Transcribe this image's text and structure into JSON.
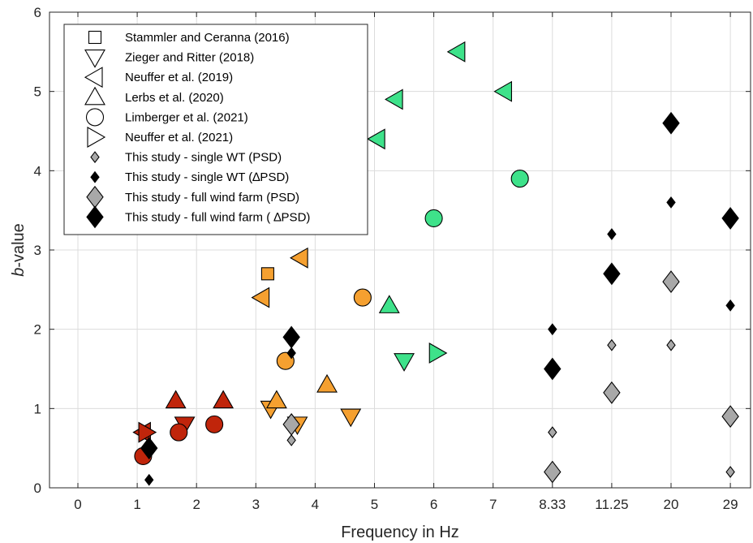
{
  "chart_data": {
    "type": "scatter",
    "xlabel": "Frequency in Hz",
    "ylabel_italic": "b",
    "ylabel_rest": "-value",
    "x_tick_labels": [
      "0",
      "1",
      "2",
      "3",
      "4",
      "5",
      "6",
      "7",
      "8.33",
      "11.25",
      "20",
      "29"
    ],
    "y_tick_labels": [
      "0",
      "1",
      "2",
      "3",
      "4",
      "5",
      "6"
    ],
    "ylim": [
      0,
      6
    ],
    "grid": true,
    "legend_position": "top-left",
    "colors": {
      "red": "#c0250b",
      "orange": "#f5a030",
      "green": "#3ee28a",
      "light_gray": "#a8a8a8",
      "black": "#000000"
    },
    "legend": [
      {
        "label": "Stammler and Ceranna (2016)",
        "marker": "square"
      },
      {
        "label": "Zieger and Ritter (2018)",
        "marker": "triangle-down"
      },
      {
        "label": "Neuffer et al. (2019)",
        "marker": "triangle-left"
      },
      {
        "label": "Lerbs et al. (2020)",
        "marker": "triangle-up"
      },
      {
        "label": "Limberger et al. (2021)",
        "marker": "circle"
      },
      {
        "label": "Neuffer et al. (2021)",
        "marker": "triangle-right"
      },
      {
        "label": "This study - single WT (PSD)",
        "marker": "diamond-small",
        "fill": "light_gray"
      },
      {
        "label": "This study - single WT (∆PSD)",
        "marker": "diamond-small",
        "fill": "black"
      },
      {
        "label": "This study - full wind farm (PSD)",
        "marker": "diamond-large",
        "fill": "light_gray"
      },
      {
        "label": "This study - full wind farm ( ∆PSD)",
        "marker": "diamond-large",
        "fill": "black"
      }
    ],
    "series": [
      {
        "marker": "square",
        "points": [
          {
            "x": 3.2,
            "y": 2.7,
            "fill": "orange"
          }
        ]
      },
      {
        "marker": "triangle-down",
        "points": [
          {
            "x": 1.8,
            "y": 0.8,
            "fill": "red"
          },
          {
            "x": 3.25,
            "y": 1.0,
            "fill": "orange"
          },
          {
            "x": 3.7,
            "y": 0.8,
            "fill": "orange"
          },
          {
            "x": 4.6,
            "y": 0.9,
            "fill": "orange"
          },
          {
            "x": 5.5,
            "y": 1.6,
            "fill": "green"
          }
        ]
      },
      {
        "marker": "triangle-left",
        "points": [
          {
            "x": 1.1,
            "y": 0.7,
            "fill": "red"
          },
          {
            "x": 3.1,
            "y": 2.4,
            "fill": "orange"
          },
          {
            "x": 3.75,
            "y": 2.9,
            "fill": "orange"
          },
          {
            "x": 5.05,
            "y": 4.4,
            "fill": "green"
          },
          {
            "x": 5.35,
            "y": 4.9,
            "fill": "green"
          },
          {
            "x": 6.4,
            "y": 5.5,
            "fill": "green"
          },
          {
            "x": 7.25,
            "y": 5.0,
            "fill": "green"
          }
        ]
      },
      {
        "marker": "triangle-up",
        "points": [
          {
            "x": 1.65,
            "y": 1.1,
            "fill": "red"
          },
          {
            "x": 2.45,
            "y": 1.1,
            "fill": "red"
          },
          {
            "x": 3.35,
            "y": 1.1,
            "fill": "orange"
          },
          {
            "x": 4.2,
            "y": 1.3,
            "fill": "orange"
          },
          {
            "x": 5.25,
            "y": 2.3,
            "fill": "green"
          }
        ]
      },
      {
        "marker": "circle",
        "points": [
          {
            "x": 1.1,
            "y": 0.4,
            "fill": "red"
          },
          {
            "x": 1.7,
            "y": 0.7,
            "fill": "red"
          },
          {
            "x": 2.3,
            "y": 0.8,
            "fill": "red"
          },
          {
            "x": 3.5,
            "y": 1.6,
            "fill": "orange"
          },
          {
            "x": 4.8,
            "y": 2.4,
            "fill": "orange"
          },
          {
            "x": 6.0,
            "y": 3.4,
            "fill": "green"
          },
          {
            "x": 7.6,
            "y": 3.9,
            "fill": "green"
          }
        ]
      },
      {
        "marker": "triangle-right",
        "points": [
          {
            "x": 1.15,
            "y": 0.7,
            "fill": "red"
          },
          {
            "x": 6.05,
            "y": 1.7,
            "fill": "green"
          }
        ]
      },
      {
        "marker": "diamond-small",
        "name": "This study - single WT (PSD)",
        "points": [
          {
            "x": 3.6,
            "y": 0.6,
            "fill": "light_gray"
          },
          {
            "x": 8.33,
            "y": 0.7,
            "fill": "light_gray"
          },
          {
            "x": 11.25,
            "y": 1.8,
            "fill": "light_gray"
          },
          {
            "x": 20,
            "y": 1.8,
            "fill": "light_gray"
          },
          {
            "x": 29,
            "y": 0.2,
            "fill": "light_gray"
          }
        ]
      },
      {
        "marker": "diamond-small",
        "name": "This study - single WT (∆PSD)",
        "points": [
          {
            "x": 1.2,
            "y": 0.1,
            "fill": "black"
          },
          {
            "x": 3.6,
            "y": 1.7,
            "fill": "black"
          },
          {
            "x": 8.33,
            "y": 2.0,
            "fill": "black"
          },
          {
            "x": 11.25,
            "y": 3.2,
            "fill": "black"
          },
          {
            "x": 20,
            "y": 3.6,
            "fill": "black"
          },
          {
            "x": 29,
            "y": 2.3,
            "fill": "black"
          }
        ]
      },
      {
        "marker": "diamond-large",
        "name": "This study - full wind farm (PSD)",
        "points": [
          {
            "x": 3.6,
            "y": 0.8,
            "fill": "light_gray"
          },
          {
            "x": 8.33,
            "y": 0.2,
            "fill": "light_gray"
          },
          {
            "x": 11.25,
            "y": 1.2,
            "fill": "light_gray"
          },
          {
            "x": 20,
            "y": 2.6,
            "fill": "light_gray"
          },
          {
            "x": 29,
            "y": 0.9,
            "fill": "light_gray"
          }
        ]
      },
      {
        "marker": "diamond-large",
        "name": "This study - full wind farm ( ∆PSD)",
        "points": [
          {
            "x": 1.2,
            "y": 0.5,
            "fill": "black"
          },
          {
            "x": 3.6,
            "y": 1.9,
            "fill": "black"
          },
          {
            "x": 8.33,
            "y": 1.5,
            "fill": "black"
          },
          {
            "x": 11.25,
            "y": 2.7,
            "fill": "black"
          },
          {
            "x": 20,
            "y": 4.6,
            "fill": "black"
          },
          {
            "x": 29,
            "y": 3.4,
            "fill": "black"
          }
        ]
      }
    ]
  }
}
